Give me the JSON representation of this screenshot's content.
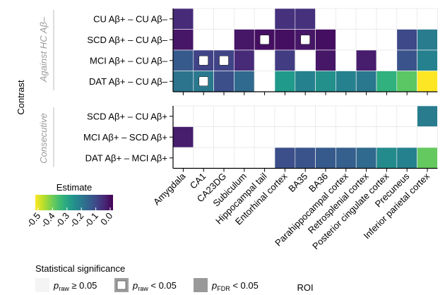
{
  "chart_data": {
    "type": "heatmap",
    "title": "",
    "xlabel": "ROI",
    "ylabel": "Contrast",
    "x_categories": [
      "Amygdala",
      "CA1",
      "CA23DG",
      "Subiculum",
      "Hippocampal tail",
      "Entorhinal cortex",
      "BA35",
      "BA36",
      "Parahippocampal cortex",
      "Retrosplenial cortex",
      "Posterior cingulate cortex",
      "Precuneus",
      "Inferior parietal cortex"
    ],
    "grid": true,
    "panels": [
      {
        "label": "Against HC Aβ–",
        "rows": [
          {
            "label": "CU Aβ+ – CU Aβ–",
            "values": [
              -0.06,
              null,
              null,
              null,
              null,
              -0.07,
              -0.07,
              null,
              null,
              null,
              null,
              null,
              null
            ],
            "raw_significant": [
              false,
              false,
              false,
              false,
              false,
              false,
              false,
              false,
              false,
              false,
              false,
              false,
              false
            ]
          },
          {
            "label": "SCD Aβ+ – CU Aβ–",
            "values": [
              -0.03,
              null,
              null,
              -0.03,
              -0.02,
              -0.02,
              -0.03,
              -0.02,
              null,
              null,
              null,
              -0.11,
              -0.21
            ],
            "raw_significant": [
              false,
              false,
              false,
              false,
              true,
              false,
              true,
              false,
              false,
              false,
              false,
              false,
              false
            ]
          },
          {
            "label": "MCI Aβ+ – CU Aβ–",
            "values": [
              -0.14,
              -0.1,
              -0.1,
              -0.06,
              null,
              -0.09,
              null,
              -0.03,
              null,
              -0.04,
              null,
              -0.13,
              -0.22
            ],
            "raw_significant": [
              false,
              true,
              true,
              false,
              false,
              false,
              false,
              false,
              false,
              false,
              false,
              false,
              false
            ]
          },
          {
            "label": "DAT Aβ+ – CU Aβ–",
            "values": [
              -0.19,
              -0.2,
              -0.12,
              -0.17,
              null,
              -0.27,
              -0.22,
              -0.25,
              -0.22,
              -0.2,
              -0.32,
              -0.37,
              -0.5
            ],
            "raw_significant": [
              false,
              true,
              false,
              false,
              false,
              false,
              false,
              false,
              false,
              false,
              false,
              false,
              false
            ]
          }
        ]
      },
      {
        "label": "Consecutive",
        "rows": [
          {
            "label": "SCD Aβ+ – CU Aβ+",
            "values": [
              null,
              null,
              null,
              null,
              null,
              null,
              null,
              null,
              null,
              null,
              null,
              null,
              -0.21
            ],
            "raw_significant": [
              false,
              false,
              false,
              false,
              false,
              false,
              false,
              false,
              false,
              false,
              false,
              false,
              false
            ]
          },
          {
            "label": "MCI Aβ+ – SCD Aβ+",
            "values": [
              -0.04,
              null,
              null,
              null,
              null,
              null,
              null,
              null,
              null,
              null,
              null,
              null,
              null
            ],
            "raw_significant": [
              false,
              false,
              false,
              false,
              false,
              false,
              false,
              false,
              false,
              false,
              false,
              false,
              false
            ]
          },
          {
            "label": "DAT Aβ+ – MCI Aβ+",
            "values": [
              null,
              null,
              null,
              null,
              null,
              -0.12,
              -0.13,
              -0.14,
              -0.15,
              -0.17,
              -0.24,
              -0.22,
              -0.38
            ],
            "raw_significant": [
              false,
              false,
              false,
              false,
              false,
              false,
              false,
              false,
              false,
              false,
              false,
              false,
              false
            ]
          }
        ]
      }
    ],
    "colorbar": {
      "title": "Estimate",
      "range": [
        -0.5,
        0.0
      ],
      "ticks": [
        "-0.5",
        "-0.4",
        "-0.3",
        "-0.2",
        "-0.1",
        "0.0"
      ],
      "colormap": "viridis"
    },
    "legend": {
      "title": "Statistical significance",
      "placement": "bottom-left",
      "items": [
        {
          "p": "p",
          "sub": "raw",
          "cond": "≥ 0.05",
          "swatch": "#f4f4f4"
        },
        {
          "p": "p",
          "sub": "raw",
          "cond": "< 0.05",
          "swatch": "outlined-white"
        },
        {
          "p": "p",
          "sub": "FDR",
          "cond": "< 0.05",
          "swatch": "#999999"
        }
      ]
    }
  }
}
